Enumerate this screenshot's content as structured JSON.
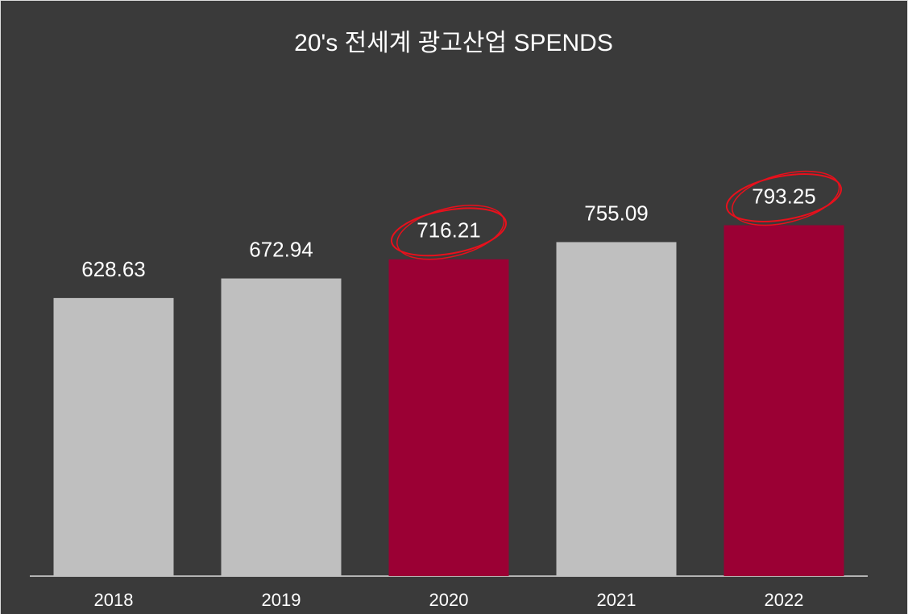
{
  "chart_data": {
    "type": "bar",
    "title": "20's 전세계 광고산업 SPENDS",
    "categories": [
      "2018",
      "2019",
      "2020",
      "2021",
      "2022"
    ],
    "values": [
      628.63,
      672.94,
      716.21,
      755.09,
      793.25
    ],
    "colors": [
      "#bfbfbf",
      "#bfbfbf",
      "#9b0034",
      "#bfbfbf",
      "#9b0034"
    ],
    "highlight": [
      false,
      false,
      true,
      false,
      true
    ],
    "ylim": [
      0,
      1000
    ]
  }
}
